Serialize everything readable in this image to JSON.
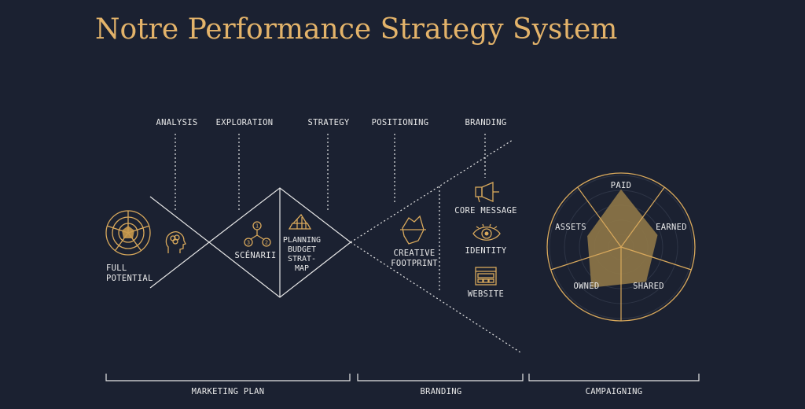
{
  "title": "Notre Performance Strategy System",
  "phases": {
    "analysis": "ANALYSIS",
    "exploration": "EXPLORATION",
    "strategy": "STRATEGY",
    "positioning": "POSITIONING",
    "branding": "BRANDING"
  },
  "left": {
    "full_potential_1": "FULL",
    "full_potential_2": "POTENTIAL"
  },
  "diamond": {
    "scenarii": "SCÉNARII",
    "numbers": [
      "1",
      "2",
      "3"
    ],
    "strategy_lines": [
      "PLANNING",
      "BUDGET",
      "STRAT-",
      "MAP"
    ]
  },
  "funnel": {
    "creative_1": "CREATIVE",
    "creative_2": "FOOTPRINT",
    "core_message": "CORE MESSAGE",
    "identity": "IDENTITY",
    "website": "WEBSITE"
  },
  "radar": {
    "labels": {
      "paid": "PAID",
      "earned": "EARNED",
      "shared": "SHARED",
      "owned": "OWNED",
      "assets": "ASSETS"
    },
    "values": {
      "paid": 0.78,
      "earned": 0.52,
      "shared": 0.58,
      "owned": 0.68,
      "assets": 0.48
    }
  },
  "sections": {
    "marketing_plan": "MARKETING PLAN",
    "branding": "BRANDING",
    "campaigning": "CAMPAIGNING"
  },
  "colors": {
    "background": "#1b2131",
    "accent": "#d9a95c",
    "title": "#e3b36a",
    "line": "#e6e6e6"
  },
  "icons": [
    "radar-target-icon",
    "head-brain-icon",
    "scenario-tree-icon",
    "strategy-map-icon",
    "iceberg-icon",
    "megaphone-icon",
    "eye-icon",
    "website-icon"
  ]
}
